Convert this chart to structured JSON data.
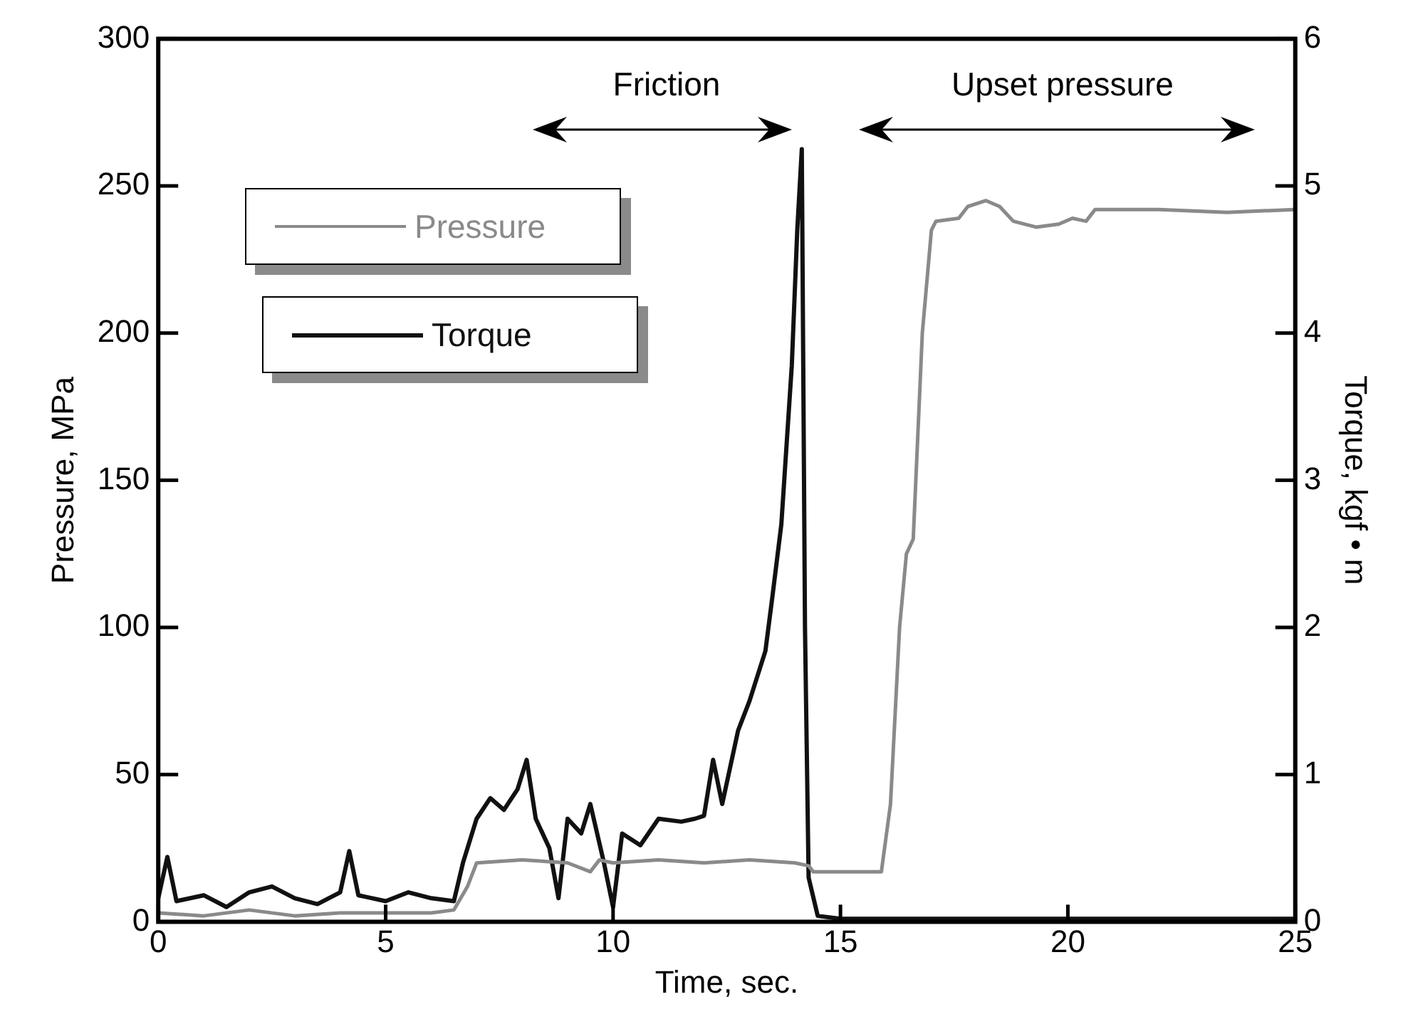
{
  "chart_data": {
    "type": "line",
    "xlabel": "Time, sec.",
    "ylabel": "Pressure, MPa",
    "y2label": "Torque, kgf • m",
    "xlim": [
      0,
      25
    ],
    "xticks": [
      0,
      5,
      10,
      15,
      20,
      25
    ],
    "ylim": [
      0,
      300
    ],
    "yticks": [
      0,
      50,
      100,
      150,
      200,
      250,
      300
    ],
    "y2lim": [
      0,
      6
    ],
    "y2ticks": [
      0,
      1,
      2,
      3,
      4,
      5,
      6
    ],
    "legend": "top left",
    "marker": "none",
    "line_style": "solid",
    "annotations": [
      "Friction",
      "Upset pressure"
    ],
    "series": [
      {
        "name": "Pressure",
        "color": "#8a8a8a",
        "x": [
          0,
          1,
          2,
          3,
          4,
          5,
          6,
          6.5,
          6.8,
          7.0,
          8,
          9,
          9.5,
          9.7,
          10,
          11,
          12,
          13,
          14,
          14.3,
          14.4,
          15,
          15.9,
          16.1,
          16.3,
          16.45,
          16.6,
          16.8,
          17.0,
          17.1,
          17.6,
          17.8,
          18.2,
          18.5,
          18.8,
          19.3,
          19.8,
          20.1,
          20.4,
          20.6,
          22,
          23.5,
          25
        ],
        "values": [
          3,
          2,
          4,
          2,
          3,
          3,
          3,
          4,
          12,
          20,
          21,
          20,
          17,
          21,
          20,
          21,
          20,
          21,
          20,
          19,
          17,
          17,
          17,
          40,
          100,
          125,
          130,
          200,
          235,
          238,
          239,
          243,
          245,
          243,
          238,
          236,
          237,
          239,
          238,
          242,
          242,
          241,
          242
        ]
      },
      {
        "name": "Torque",
        "color": "#111111",
        "axis": "y2",
        "x": [
          0,
          0.2,
          0.4,
          1,
          1.5,
          2,
          2.5,
          3,
          3.5,
          4,
          4.2,
          4.4,
          5,
          5.5,
          6,
          6.5,
          6.7,
          7,
          7.3,
          7.6,
          7.9,
          8.1,
          8.3,
          8.6,
          8.8,
          9,
          9.3,
          9.5,
          9.8,
          10,
          10.2,
          10.6,
          11,
          11.5,
          11.8,
          12,
          12.2,
          12.4,
          12.75,
          13.0,
          13.35,
          13.5,
          13.7,
          13.93,
          14.05,
          14.15,
          14.22,
          14.3,
          14.5,
          15,
          17,
          20,
          25
        ],
        "values": [
          0.16,
          0.44,
          0.14,
          0.18,
          0.1,
          0.2,
          0.24,
          0.16,
          0.12,
          0.2,
          0.48,
          0.18,
          0.14,
          0.2,
          0.16,
          0.14,
          0.4,
          0.7,
          0.84,
          0.76,
          0.9,
          1.1,
          0.7,
          0.5,
          0.16,
          0.7,
          0.6,
          0.8,
          0.4,
          0.1,
          0.6,
          0.52,
          0.7,
          0.68,
          0.7,
          0.72,
          1.1,
          0.8,
          1.3,
          1.5,
          1.84,
          2.2,
          2.7,
          3.78,
          4.7,
          5.25,
          2.0,
          0.3,
          0.04,
          0.02,
          0.02,
          0.02,
          0.02
        ]
      }
    ]
  }
}
